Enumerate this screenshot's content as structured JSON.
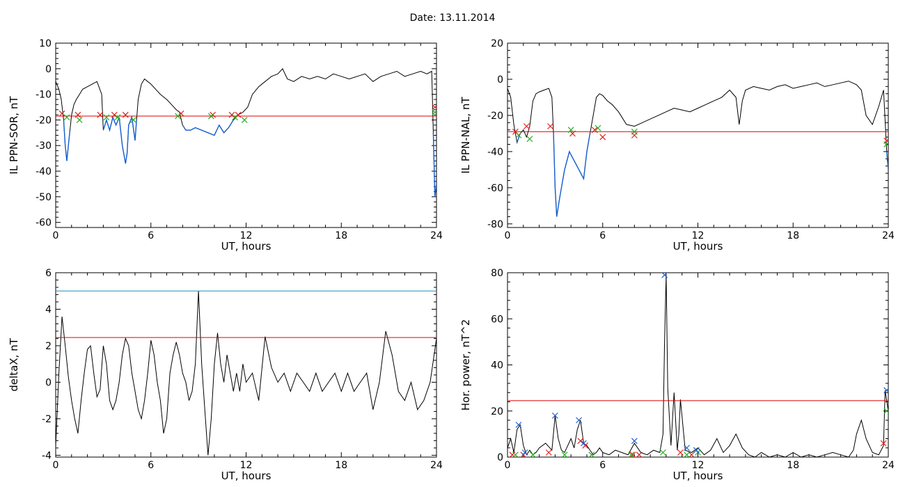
{
  "header": {
    "title": "Date:  13.11.2014"
  },
  "colors": {
    "series": "#000000",
    "threshold": "#e00000",
    "highlight": "#1560d0",
    "upper": "#1a8fbf",
    "cross_red": "#e02020",
    "cross_green": "#22b020",
    "cross_blue": "#1a5fd0"
  },
  "chart_data": [
    {
      "id": "ppn-sor",
      "type": "line",
      "ylabel": "IL PPN-SOR, nT",
      "xlabel": "UT, hours",
      "xlim": [
        0,
        24
      ],
      "ylim": [
        -62,
        10
      ],
      "xticks": [
        0,
        6,
        12,
        18,
        24
      ],
      "yticks": [
        10,
        0,
        -10,
        -20,
        -30,
        -40,
        -50,
        -60
      ],
      "threshold": -18.5,
      "series": [
        {
          "x": [
            0,
            0.2,
            0.35,
            0.5,
            0.6,
            0.7,
            0.8,
            0.9,
            1.0,
            1.15,
            1.3,
            1.5,
            1.7,
            2.0,
            2.3,
            2.6,
            2.9,
            3.0,
            3.1,
            3.2,
            3.4,
            3.6,
            3.8,
            4.0,
            4.2,
            4.4,
            4.5,
            4.6,
            4.8,
            5.0,
            5.1,
            5.2,
            5.4,
            5.6,
            5.8,
            6.0,
            6.3,
            6.6,
            7.0,
            7.3,
            7.6,
            7.8,
            8.0,
            8.2,
            8.5,
            8.8,
            9.2,
            9.6,
            10.0,
            10.3,
            10.6,
            10.9,
            11.2,
            11.5,
            11.8,
            12.1,
            12.4,
            12.8,
            13.2,
            13.6,
            14.0,
            14.3,
            14.6,
            15.0,
            15.5,
            16.0,
            16.5,
            17.0,
            17.5,
            18.0,
            18.5,
            19.0,
            19.5,
            20.0,
            20.5,
            21.0,
            21.5,
            22.0,
            22.5,
            23.0,
            23.4,
            23.7,
            23.8,
            23.9,
            24.0
          ],
          "y": [
            -5,
            -8,
            -12,
            -20,
            -30,
            -36,
            -30,
            -24,
            -18,
            -14,
            -12,
            -10,
            -8,
            -7,
            -6,
            -5,
            -10,
            -24,
            -22,
            -20,
            -24,
            -19,
            -22,
            -19,
            -30,
            -37,
            -33,
            -22,
            -19,
            -28,
            -20,
            -12,
            -6,
            -4,
            -5,
            -6,
            -8,
            -10,
            -12,
            -14,
            -16,
            -17,
            -22,
            -24,
            -24,
            -23,
            -24,
            -25,
            -26,
            -22,
            -25,
            -23,
            -20,
            -18,
            -17,
            -15,
            -10,
            -7,
            -5,
            -3,
            -2,
            0,
            -4,
            -5,
            -3,
            -4,
            -3,
            -4,
            -2,
            -3,
            -4,
            -3,
            -2,
            -5,
            -3,
            -2,
            -1,
            -3,
            -2,
            -1,
            -2,
            -1,
            -25,
            -50,
            -45
          ]
        }
      ],
      "markers_red": [
        [
          0.4,
          -17.5
        ],
        [
          1.4,
          -18
        ],
        [
          2.8,
          -18
        ],
        [
          3.7,
          -18
        ],
        [
          4.4,
          -18
        ],
        [
          7.9,
          -17.5
        ],
        [
          9.9,
          -18
        ],
        [
          11.1,
          -18
        ],
        [
          11.5,
          -18
        ],
        [
          23.9,
          -15
        ]
      ],
      "markers_green": [
        [
          0.7,
          -19
        ],
        [
          1.5,
          -20
        ],
        [
          3.2,
          -19
        ],
        [
          3.9,
          -19
        ],
        [
          4.9,
          -20
        ],
        [
          7.7,
          -18.5
        ],
        [
          9.8,
          -18.5
        ],
        [
          11.3,
          -19
        ],
        [
          11.9,
          -20
        ],
        [
          23.9,
          -17
        ]
      ]
    },
    {
      "id": "ppn-nal",
      "type": "line",
      "ylabel": "IL PPN-NAL, nT",
      "xlabel": "UT, hours",
      "xlim": [
        0,
        24
      ],
      "ylim": [
        -82,
        20
      ],
      "xticks": [
        0,
        6,
        12,
        18,
        24
      ],
      "yticks": [
        20,
        0,
        -20,
        -40,
        -60,
        -80
      ],
      "threshold": -29,
      "series": [
        {
          "x": [
            0,
            0.2,
            0.4,
            0.6,
            0.8,
            1.0,
            1.2,
            1.4,
            1.6,
            1.8,
            2.0,
            2.3,
            2.6,
            2.8,
            2.9,
            3.0,
            3.1,
            3.3,
            3.6,
            3.9,
            4.2,
            4.5,
            4.8,
            5.0,
            5.2,
            5.4,
            5.6,
            5.8,
            6.0,
            6.3,
            6.6,
            7.0,
            7.5,
            8.0,
            8.5,
            9.0,
            9.5,
            10.0,
            10.5,
            11.0,
            11.5,
            12.0,
            12.5,
            13.0,
            13.5,
            14.0,
            14.4,
            14.6,
            14.8,
            15.0,
            15.5,
            16.0,
            16.5,
            17.0,
            17.5,
            18.0,
            18.5,
            19.0,
            19.5,
            20.0,
            20.5,
            21.0,
            21.5,
            22.0,
            22.3,
            22.6,
            23.0,
            23.4,
            23.7,
            23.9,
            24.0
          ],
          "y": [
            -5,
            -10,
            -25,
            -35,
            -30,
            -28,
            -32,
            -26,
            -12,
            -8,
            -7,
            -6,
            -5,
            -10,
            -30,
            -60,
            -76,
            -65,
            -50,
            -40,
            -45,
            -50,
            -55,
            -40,
            -30,
            -20,
            -10,
            -8,
            -9,
            -12,
            -14,
            -18,
            -25,
            -26,
            -24,
            -22,
            -20,
            -18,
            -16,
            -17,
            -18,
            -16,
            -14,
            -12,
            -10,
            -6,
            -10,
            -25,
            -12,
            -6,
            -4,
            -5,
            -6,
            -4,
            -3,
            -5,
            -4,
            -3,
            -2,
            -4,
            -3,
            -2,
            -1,
            -3,
            -6,
            -20,
            -25,
            -15,
            -6,
            -40,
            -50
          ]
        }
      ],
      "markers_red": [
        [
          0.5,
          -29
        ],
        [
          1.2,
          -26
        ],
        [
          2.7,
          -26
        ],
        [
          4.1,
          -30
        ],
        [
          5.5,
          -28
        ],
        [
          6.0,
          -32
        ],
        [
          8.0,
          -31
        ],
        [
          23.9,
          -34
        ]
      ],
      "markers_green": [
        [
          0.7,
          -31
        ],
        [
          1.4,
          -33
        ],
        [
          4.0,
          -28
        ],
        [
          5.7,
          -27
        ],
        [
          8.0,
          -29
        ],
        [
          23.9,
          -36
        ]
      ]
    },
    {
      "id": "deltax",
      "type": "line",
      "ylabel": "deltaX, nT",
      "xlabel": "UT, hours",
      "xlim": [
        0,
        24
      ],
      "ylim": [
        -4.1,
        6
      ],
      "xticks": [
        0,
        6,
        12,
        18,
        24
      ],
      "yticks": [
        6,
        4,
        2,
        0,
        -2,
        -4
      ],
      "threshold": 2.45,
      "upper_threshold": 5.0,
      "series": [
        {
          "x": [
            0,
            0.2,
            0.4,
            0.6,
            0.8,
            1.0,
            1.2,
            1.4,
            1.6,
            1.8,
            2.0,
            2.2,
            2.4,
            2.6,
            2.8,
            3.0,
            3.2,
            3.4,
            3.6,
            3.8,
            4.0,
            4.2,
            4.4,
            4.6,
            4.8,
            5.0,
            5.2,
            5.4,
            5.6,
            5.8,
            6.0,
            6.2,
            6.4,
            6.6,
            6.8,
            7.0,
            7.2,
            7.4,
            7.6,
            7.8,
            8.0,
            8.2,
            8.4,
            8.6,
            8.8,
            9.0,
            9.2,
            9.4,
            9.6,
            9.8,
            10.0,
            10.2,
            10.4,
            10.6,
            10.8,
            11.0,
            11.2,
            11.4,
            11.6,
            11.8,
            12.0,
            12.4,
            12.8,
            13.2,
            13.6,
            14.0,
            14.4,
            14.8,
            15.2,
            15.6,
            16.0,
            16.4,
            16.8,
            17.2,
            17.6,
            18.0,
            18.4,
            18.8,
            19.2,
            19.6,
            20.0,
            20.4,
            20.8,
            21.2,
            21.6,
            22.0,
            22.4,
            22.8,
            23.2,
            23.6,
            24.0
          ],
          "y": [
            -3.5,
            0.5,
            3.6,
            2.0,
            0.3,
            -1.0,
            -2.0,
            -2.8,
            -1.0,
            0.5,
            1.8,
            2.0,
            0.5,
            -0.8,
            -0.4,
            2.0,
            1.0,
            -1.0,
            -1.5,
            -1.0,
            0.0,
            1.5,
            2.4,
            2.0,
            0.5,
            -0.5,
            -1.5,
            -2.0,
            -1.0,
            0.5,
            2.3,
            1.5,
            0.0,
            -1.0,
            -2.8,
            -2.0,
            0.5,
            1.5,
            2.2,
            1.5,
            0.5,
            0.0,
            -1.0,
            -0.5,
            1.0,
            5.0,
            1.0,
            -1.5,
            -4.0,
            -2.0,
            1.0,
            2.7,
            1.0,
            0.0,
            1.5,
            0.5,
            -0.5,
            0.5,
            -0.5,
            1.0,
            0.0,
            0.5,
            -1.0,
            2.5,
            0.8,
            0.0,
            0.5,
            -0.5,
            0.5,
            0.0,
            -0.5,
            0.5,
            -0.5,
            0.0,
            0.5,
            -0.5,
            0.5,
            -0.5,
            0.0,
            0.5,
            -1.5,
            0.0,
            2.8,
            1.5,
            -0.5,
            -1.0,
            0.0,
            -1.5,
            -1.0,
            0.0,
            2.4
          ]
        }
      ],
      "markers_red": [],
      "markers_green": []
    },
    {
      "id": "hor-power",
      "type": "line",
      "ylabel": "Hor. power, nT^2",
      "xlabel": "UT, hours",
      "xlim": [
        0,
        24
      ],
      "ylim": [
        0,
        80
      ],
      "xticks": [
        0,
        6,
        12,
        18,
        24
      ],
      "yticks": [
        80,
        60,
        40,
        20,
        0
      ],
      "threshold": 24.5,
      "series": [
        {
          "x": [
            0,
            0.2,
            0.4,
            0.6,
            0.8,
            1.0,
            1.2,
            1.4,
            1.6,
            1.8,
            2.0,
            2.4,
            2.8,
            3.0,
            3.2,
            3.4,
            3.6,
            3.8,
            4.0,
            4.2,
            4.4,
            4.6,
            4.8,
            5.0,
            5.2,
            5.4,
            5.6,
            5.8,
            6.0,
            6.4,
            6.8,
            7.2,
            7.6,
            8.0,
            8.4,
            8.8,
            9.2,
            9.6,
            9.8,
            9.9,
            10.0,
            10.1,
            10.3,
            10.5,
            10.7,
            10.8,
            10.9,
            11.2,
            11.6,
            12.0,
            12.4,
            12.8,
            13.2,
            13.6,
            14.0,
            14.4,
            14.8,
            15.2,
            15.6,
            16.0,
            16.5,
            17.0,
            17.5,
            18.0,
            18.5,
            19.0,
            19.5,
            20.0,
            20.5,
            21.0,
            21.5,
            21.8,
            22.0,
            22.3,
            22.6,
            23.0,
            23.4,
            23.7,
            23.8,
            24.0
          ],
          "y": [
            4,
            8,
            2,
            12,
            14,
            5,
            1,
            3,
            1,
            2,
            4,
            6,
            3,
            18,
            8,
            3,
            2,
            5,
            8,
            4,
            12,
            16,
            6,
            5,
            3,
            1,
            2,
            4,
            2,
            1,
            3,
            2,
            1,
            6,
            2,
            1,
            3,
            2,
            10,
            50,
            79,
            30,
            5,
            28,
            3,
            10,
            25,
            3,
            2,
            4,
            1,
            3,
            8,
            2,
            5,
            10,
            4,
            1,
            0,
            2,
            0,
            1,
            0,
            2,
            0,
            1,
            0,
            1,
            2,
            1,
            0,
            3,
            10,
            16,
            8,
            2,
            1,
            5,
            29,
            20
          ]
        }
      ],
      "markers_red": [
        [
          0.3,
          1
        ],
        [
          1.0,
          1
        ],
        [
          2.6,
          2
        ],
        [
          4.6,
          7
        ],
        [
          4.9,
          5
        ],
        [
          7.9,
          1
        ],
        [
          8.3,
          1
        ],
        [
          10.9,
          2
        ],
        [
          11.6,
          1
        ],
        [
          23.7,
          6
        ]
      ],
      "markers_green": [
        [
          0.5,
          1
        ],
        [
          1.6,
          1
        ],
        [
          3.6,
          1
        ],
        [
          5.3,
          1
        ],
        [
          7.8,
          1
        ],
        [
          9.8,
          2
        ],
        [
          11.3,
          1
        ],
        [
          12.0,
          2
        ],
        [
          23.9,
          20
        ]
      ],
      "markers_blue": [
        [
          0.7,
          14
        ],
        [
          1.1,
          2
        ],
        [
          3.0,
          18
        ],
        [
          4.5,
          16
        ],
        [
          4.8,
          6
        ],
        [
          8.0,
          7
        ],
        [
          9.9,
          79
        ],
        [
          11.3,
          4
        ],
        [
          11.9,
          3
        ],
        [
          23.9,
          29
        ]
      ]
    }
  ]
}
